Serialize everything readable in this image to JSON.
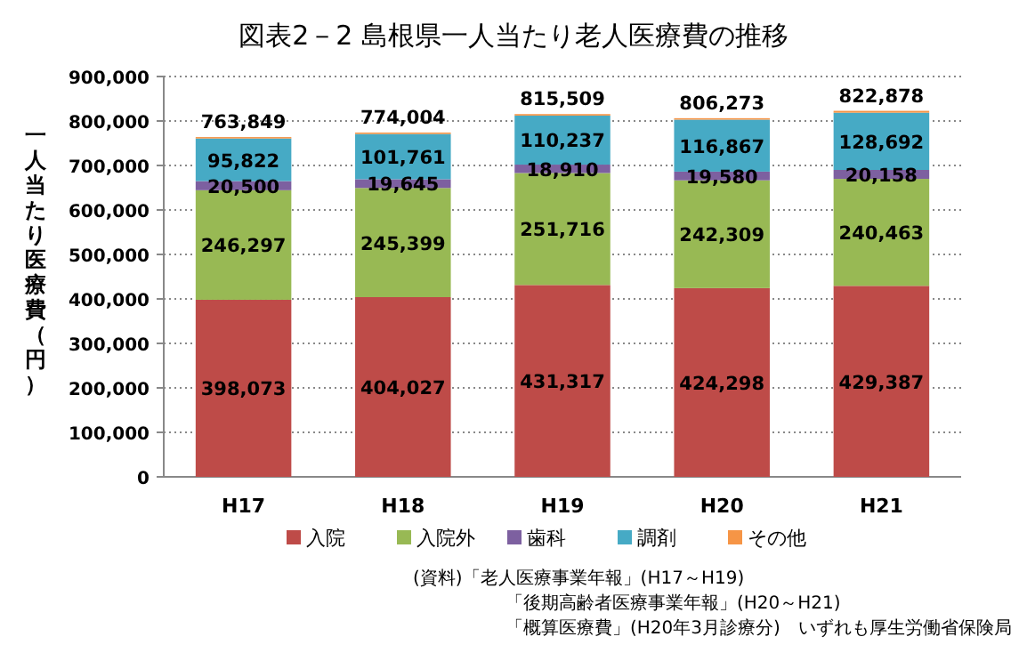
{
  "chart_data": {
    "type": "bar",
    "stacked": true,
    "title": "図表2－2 島根県一人当たり老人医療費の推移",
    "ylabel": "一人当たり医療費（円）",
    "categories": [
      "H17",
      "H18",
      "H19",
      "H20",
      "H21"
    ],
    "series": [
      {
        "name": "入院",
        "color": "#be4b48",
        "values": [
          398073,
          404027,
          431317,
          424298,
          429387
        ],
        "value_labels": [
          "398,073",
          "404,027",
          "431,317",
          "424,298",
          "429,387"
        ]
      },
      {
        "name": "入院外",
        "color": "#98b954",
        "values": [
          246297,
          245399,
          251716,
          242309,
          240463
        ],
        "value_labels": [
          "246,297",
          "245,399",
          "251,716",
          "242,309",
          "240,463"
        ]
      },
      {
        "name": "歯科",
        "color": "#7d60a0",
        "values": [
          20500,
          19645,
          18910,
          19580,
          20158
        ],
        "value_labels": [
          "20,500",
          "19,645",
          "18,910",
          "19,580",
          "20,158"
        ]
      },
      {
        "name": "調剤",
        "color": "#46aac5",
        "values": [
          95822,
          101761,
          110237,
          116867,
          128692
        ],
        "value_labels": [
          "95,822",
          "101,761",
          "110,237",
          "116,867",
          "128,692"
        ]
      },
      {
        "name": "その他",
        "color": "#f69546",
        "values": [
          3157,
          3172,
          3329,
          3219,
          4178
        ]
      }
    ],
    "totals": [
      "763,849",
      "774,004",
      "815,509",
      "806,273",
      "822,878"
    ],
    "ylim": [
      0,
      900000
    ],
    "yticks": [
      {
        "value": 0,
        "label": "0"
      },
      {
        "value": 100000,
        "label": "100,000"
      },
      {
        "value": 200000,
        "label": "200,000"
      },
      {
        "value": 300000,
        "label": "300,000"
      },
      {
        "value": 400000,
        "label": "400,000"
      },
      {
        "value": 500000,
        "label": "500,000"
      },
      {
        "value": 600000,
        "label": "600,000"
      },
      {
        "value": 700000,
        "label": "700,000"
      },
      {
        "value": 800000,
        "label": "800,000"
      },
      {
        "value": 900000,
        "label": "900,000"
      }
    ],
    "grid": "y",
    "legend": "bottom",
    "annotations": [
      "(資料)「老人医療事業年報」(H17～H19)",
      "「後期高齢者医療事業年報」(H20～H21)",
      "「概算医療費」(H20年3月診療分)　いずれも厚生労働省保険局"
    ]
  }
}
